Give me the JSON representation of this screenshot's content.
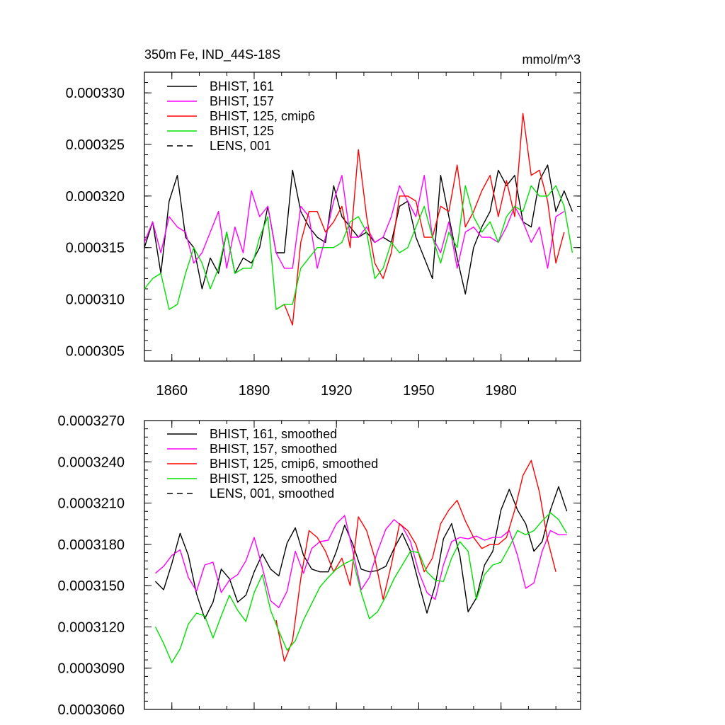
{
  "colors": {
    "black": "#000000",
    "magenta": "#ff00ff",
    "red": "#ff0000",
    "green": "#00e000"
  },
  "chart_data": [
    {
      "type": "line",
      "title_left": "350m Fe, IND_44S-18S",
      "title_right": "mmol/m^3",
      "xlim": [
        1850,
        2009
      ],
      "ylim": [
        0.000304,
        0.000332
      ],
      "yticks": [
        0.000305,
        0.00031,
        0.000315,
        0.00032,
        0.000325,
        0.00033
      ],
      "yticklabels": [
        "0.000305",
        "0.000310",
        "0.000315",
        "0.000320",
        "0.000325",
        "0.000330"
      ],
      "xticks": [
        1860,
        1890,
        1920,
        1950,
        1980
      ],
      "xticklabels": [
        "1860",
        "1890",
        "1920",
        "1950",
        "1980"
      ],
      "legend": [
        {
          "label": "BHIST, 161",
          "color": "#000000",
          "dash": false
        },
        {
          "label": "BHIST, 157",
          "color": "#ff00ff",
          "dash": false
        },
        {
          "label": "BHIST, 125, cmip6",
          "color": "#ff0000",
          "dash": false
        },
        {
          "label": "BHIST, 125",
          "color": "#00e000",
          "dash": false
        },
        {
          "label": "LENS, 001",
          "color": "#000000",
          "dash": true
        }
      ],
      "series": [
        {
          "name": "BHIST, 161",
          "color": "#000000",
          "x": [
            1850,
            1853,
            1856,
            1859,
            1862,
            1865,
            1868,
            1871,
            1874,
            1877,
            1880,
            1883,
            1886,
            1889,
            1892,
            1895,
            1898,
            1901,
            1904,
            1907,
            1910,
            1913,
            1916,
            1919,
            1922,
            1925,
            1928,
            1931,
            1934,
            1937,
            1940,
            1943,
            1946,
            1949,
            1952,
            1955,
            1958,
            1961,
            1964,
            1967,
            1970,
            1973,
            1976,
            1979,
            1982,
            1985,
            1988,
            1991,
            1994,
            1997,
            2000,
            2003,
            2006
          ],
          "values": [
            0.000315,
            0.0003175,
            0.0003125,
            0.0003195,
            0.000322,
            0.000316,
            0.000315,
            0.000311,
            0.000314,
            0.0003125,
            0.0003165,
            0.0003125,
            0.000314,
            0.0003135,
            0.000315,
            0.000319,
            0.0003145,
            0.0003145,
            0.0003225,
            0.0003185,
            0.000317,
            0.000316,
            0.0003155,
            0.000321,
            0.000318,
            0.000317,
            0.000316,
            0.0003165,
            0.0003155,
            0.000316,
            0.0003155,
            0.000319,
            0.0003195,
            0.000316,
            0.000314,
            0.000312,
            0.000322,
            0.000318,
            0.000314,
            0.0003105,
            0.000315,
            0.000317,
            0.0003185,
            0.0003225,
            0.000321,
            0.000322,
            0.0003175,
            0.000317,
            0.0003215,
            0.000323,
            0.0003185,
            0.0003205,
            0.0003185
          ]
        },
        {
          "name": "BHIST, 157",
          "color": "#ff00ff",
          "x": [
            1850,
            1853,
            1856,
            1859,
            1862,
            1865,
            1868,
            1871,
            1874,
            1877,
            1880,
            1883,
            1886,
            1889,
            1892,
            1895,
            1898,
            1901,
            1904,
            1907,
            1910,
            1913,
            1916,
            1919,
            1922,
            1925,
            1928,
            1931,
            1934,
            1937,
            1940,
            1943,
            1946,
            1949,
            1952,
            1955,
            1958,
            1961,
            1964,
            1967,
            1970,
            1973,
            1976,
            1979,
            1982,
            1985,
            1988,
            1991,
            1994,
            1997,
            2000,
            2003
          ],
          "values": [
            0.0003155,
            0.0003175,
            0.0003145,
            0.000318,
            0.000317,
            0.0003165,
            0.0003135,
            0.0003145,
            0.0003165,
            0.0003185,
            0.000313,
            0.000317,
            0.0003145,
            0.0003205,
            0.000318,
            0.000319,
            0.0003145,
            0.000313,
            0.000313,
            0.000319,
            0.000318,
            0.000313,
            0.000316,
            0.0003195,
            0.000322,
            0.000316,
            0.000316,
            0.000317,
            0.0003155,
            0.000316,
            0.000318,
            0.000321,
            0.0003195,
            0.000318,
            0.000322,
            0.000316,
            0.0003145,
            0.0003175,
            0.000313,
            0.0003165,
            0.000317,
            0.000316,
            0.000316,
            0.0003155,
            0.000317,
            0.000319,
            0.0003175,
            0.0003155,
            0.000317,
            0.000313,
            0.000318,
            0.0003185
          ]
        },
        {
          "name": "BHIST, 125, cmip6",
          "color": "#ff0000",
          "x": [
            1898,
            1901,
            1904,
            1907,
            1910,
            1913,
            1916,
            1919,
            1922,
            1925,
            1928,
            1931,
            1934,
            1937,
            1940,
            1943,
            1946,
            1949,
            1952,
            1955,
            1958,
            1961,
            1964,
            1967,
            1970,
            1973,
            1976,
            1979,
            1982,
            1985,
            1988,
            1991,
            1994,
            1997,
            2000,
            2003
          ],
          "values": [
            0.000309,
            0.0003095,
            0.0003075,
            0.0003155,
            0.0003185,
            0.0003185,
            0.0003165,
            0.0003175,
            0.000319,
            0.000315,
            0.0003245,
            0.000318,
            0.0003135,
            0.000312,
            0.0003145,
            0.00032,
            0.00032,
            0.0003195,
            0.000316,
            0.000316,
            0.000319,
            0.0003185,
            0.000323,
            0.000317,
            0.0003185,
            0.0003205,
            0.000322,
            0.000318,
            0.0003215,
            0.000318,
            0.000328,
            0.000322,
            0.0003225,
            0.0003195,
            0.0003135,
            0.0003165
          ]
        },
        {
          "name": "BHIST, 125",
          "color": "#00e000",
          "x": [
            1850,
            1853,
            1856,
            1859,
            1862,
            1865,
            1868,
            1871,
            1874,
            1877,
            1880,
            1883,
            1886,
            1889,
            1892,
            1895,
            1898,
            1901,
            1904,
            1907,
            1910,
            1913,
            1916,
            1919,
            1922,
            1925,
            1928,
            1931,
            1934,
            1937,
            1940,
            1943,
            1946,
            1949,
            1952,
            1955,
            1958,
            1961,
            1964,
            1967,
            1970,
            1973,
            1976,
            1979,
            1982,
            1985,
            1988,
            1991,
            1994,
            1997,
            2000,
            2003,
            2006
          ],
          "values": [
            0.000311,
            0.000312,
            0.0003125,
            0.000309,
            0.0003095,
            0.0003125,
            0.000315,
            0.0003135,
            0.000311,
            0.000313,
            0.0003165,
            0.0003125,
            0.000313,
            0.000313,
            0.000316,
            0.000318,
            0.000309,
            0.0003095,
            0.0003095,
            0.000313,
            0.000314,
            0.000315,
            0.000315,
            0.000315,
            0.0003155,
            0.0003175,
            0.000318,
            0.0003165,
            0.000312,
            0.000313,
            0.0003155,
            0.0003145,
            0.000315,
            0.000317,
            0.000319,
            0.000316,
            0.0003135,
            0.0003165,
            0.000315,
            0.000321,
            0.000318,
            0.0003165,
            0.0003175,
            0.0003155,
            0.000318,
            0.000319,
            0.0003185,
            0.000321,
            0.00032,
            0.00032,
            0.000321,
            0.000319,
            0.0003145
          ]
        }
      ]
    },
    {
      "type": "line",
      "xlim": [
        1850,
        2009
      ],
      "ylim": [
        0.000306,
        0.000327
      ],
      "yticks": [
        0.000306,
        0.000309,
        0.000312,
        0.000315,
        0.000318,
        0.000321,
        0.000324,
        0.000327
      ],
      "yticklabels": [
        "0.0003060",
        "0.0003090",
        "0.0003120",
        "0.0003150",
        "0.0003180",
        "0.0003210",
        "0.0003240",
        "0.0003270"
      ],
      "xticks": [
        1860,
        1890,
        1920,
        1950,
        1980
      ],
      "legend": [
        {
          "label": "BHIST, 161, smoothed",
          "color": "#000000",
          "dash": false
        },
        {
          "label": "BHIST, 157, smoothed",
          "color": "#ff00ff",
          "dash": false
        },
        {
          "label": "BHIST, 125, cmip6, smoothed",
          "color": "#ff0000",
          "dash": false
        },
        {
          "label": "BHIST, 125, smoothed",
          "color": "#00e000",
          "dash": false
        },
        {
          "label": "LENS, 001, smoothed",
          "color": "#000000",
          "dash": true
        }
      ],
      "series": [
        {
          "name": "BHIST, 161, smoothed",
          "color": "#000000",
          "x": [
            1854,
            1857,
            1860,
            1863,
            1866,
            1869,
            1872,
            1875,
            1878,
            1881,
            1884,
            1887,
            1890,
            1893,
            1896,
            1899,
            1902,
            1905,
            1908,
            1911,
            1914,
            1917,
            1920,
            1923,
            1926,
            1929,
            1932,
            1935,
            1938,
            1941,
            1944,
            1947,
            1950,
            1953,
            1956,
            1959,
            1962,
            1965,
            1968,
            1971,
            1974,
            1977,
            1980,
            1983,
            1986,
            1989,
            1992,
            1995,
            1998,
            2001,
            2004
          ],
          "values": [
            0.0003153,
            0.0003147,
            0.0003166,
            0.0003188,
            0.0003172,
            0.0003144,
            0.0003126,
            0.0003138,
            0.0003162,
            0.0003155,
            0.0003138,
            0.0003143,
            0.000316,
            0.0003173,
            0.0003162,
            0.0003157,
            0.0003181,
            0.0003192,
            0.0003172,
            0.0003162,
            0.000316,
            0.000316,
            0.0003175,
            0.0003194,
            0.000318,
            0.0003162,
            0.000316,
            0.0003161,
            0.0003164,
            0.0003177,
            0.0003188,
            0.0003175,
            0.0003152,
            0.000313,
            0.000315,
            0.0003184,
            0.0003195,
            0.0003172,
            0.0003131,
            0.0003141,
            0.0003165,
            0.0003175,
            0.0003205,
            0.000322,
            0.0003205,
            0.0003195,
            0.0003175,
            0.0003182,
            0.0003205,
            0.0003222,
            0.0003204
          ]
        },
        {
          "name": "BHIST, 157, smoothed",
          "color": "#ff00ff",
          "x": [
            1854,
            1857,
            1860,
            1863,
            1866,
            1869,
            1872,
            1875,
            1878,
            1881,
            1884,
            1887,
            1890,
            1893,
            1896,
            1899,
            1902,
            1905,
            1908,
            1911,
            1914,
            1917,
            1920,
            1923,
            1926,
            1929,
            1932,
            1935,
            1938,
            1941,
            1944,
            1947,
            1950,
            1953,
            1956,
            1959,
            1962,
            1965,
            1968,
            1971,
            1974,
            1977,
            1980,
            1983,
            1986,
            1989,
            1992,
            1995,
            1998,
            2001,
            2004
          ],
          "values": [
            0.0003159,
            0.0003164,
            0.0003172,
            0.0003176,
            0.0003156,
            0.0003146,
            0.0003165,
            0.0003167,
            0.0003145,
            0.0003154,
            0.0003158,
            0.0003168,
            0.0003185,
            0.0003163,
            0.0003139,
            0.0003134,
            0.0003146,
            0.0003175,
            0.0003159,
            0.0003177,
            0.0003182,
            0.0003183,
            0.0003195,
            0.0003201,
            0.0003175,
            0.0003147,
            0.0003156,
            0.0003175,
            0.0003191,
            0.0003198,
            0.0003193,
            0.0003182,
            0.000316,
            0.0003145,
            0.000314,
            0.0003165,
            0.0003182,
            0.0003185,
            0.0003184,
            0.0003186,
            0.0003183,
            0.0003185,
            0.0003185,
            0.000319,
            0.0003172,
            0.0003148,
            0.0003152,
            0.0003175,
            0.000319,
            0.0003187,
            0.0003187
          ]
        },
        {
          "name": "BHIST, 125, cmip6, smoothed",
          "color": "#ff0000",
          "x": [
            1898,
            1901,
            1904,
            1907,
            1910,
            1913,
            1916,
            1919,
            1922,
            1925,
            1928,
            1931,
            1934,
            1937,
            1940,
            1943,
            1946,
            1949,
            1952,
            1955,
            1958,
            1961,
            1964,
            1967,
            1970,
            1973,
            1976,
            1979,
            1982,
            1985,
            1988,
            1991,
            1994,
            1997,
            2000
          ],
          "values": [
            0.0003125,
            0.0003095,
            0.000311,
            0.0003155,
            0.000319,
            0.0003185,
            0.0003175,
            0.000316,
            0.000317,
            0.000315,
            0.00032,
            0.000319,
            0.000317,
            0.000314,
            0.0003165,
            0.0003195,
            0.000319,
            0.000318,
            0.000316,
            0.000317,
            0.0003195,
            0.0003205,
            0.0003212,
            0.0003197,
            0.0003185,
            0.0003177,
            0.000318,
            0.000318,
            0.0003185,
            0.0003205,
            0.000323,
            0.0003241,
            0.0003218,
            0.0003183,
            0.000316
          ]
        },
        {
          "name": "BHIST, 125, smoothed",
          "color": "#00e000",
          "x": [
            1854,
            1857,
            1860,
            1863,
            1866,
            1869,
            1872,
            1875,
            1878,
            1881,
            1884,
            1887,
            1890,
            1893,
            1896,
            1899,
            1902,
            1905,
            1908,
            1911,
            1914,
            1917,
            1920,
            1923,
            1926,
            1929,
            1932,
            1935,
            1938,
            1941,
            1944,
            1947,
            1950,
            1953,
            1956,
            1959,
            1962,
            1965,
            1968,
            1971,
            1974,
            1977,
            1980,
            1983,
            1986,
            1989,
            1992,
            1995,
            1998,
            2001,
            2004
          ],
          "values": [
            0.000312,
            0.0003108,
            0.0003094,
            0.0003104,
            0.0003122,
            0.000313,
            0.0003128,
            0.0003112,
            0.0003128,
            0.0003143,
            0.0003132,
            0.0003124,
            0.0003145,
            0.0003158,
            0.0003132,
            0.0003117,
            0.0003103,
            0.000311,
            0.0003125,
            0.0003137,
            0.0003149,
            0.0003156,
            0.0003162,
            0.0003166,
            0.0003169,
            0.0003145,
            0.0003126,
            0.0003131,
            0.0003142,
            0.0003155,
            0.0003165,
            0.0003175,
            0.0003174,
            0.000316,
            0.0003154,
            0.0003153,
            0.000317,
            0.0003182,
            0.0003175,
            0.000314,
            0.0003158,
            0.0003165,
            0.0003167,
            0.0003178,
            0.000319,
            0.0003187,
            0.000319,
            0.0003197,
            0.0003203,
            0.0003198,
            0.0003188
          ]
        }
      ]
    }
  ]
}
